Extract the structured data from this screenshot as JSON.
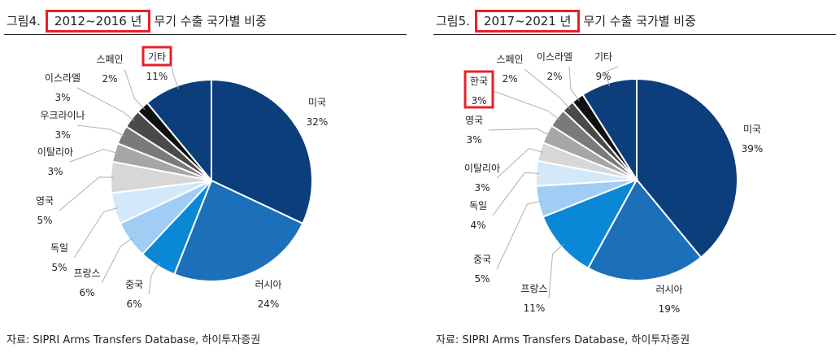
{
  "chart_data": [
    {
      "type": "pie",
      "title_prefix": "그림4.",
      "title_period": "2012~2016 년",
      "title_suffix": "무기 수출 국가별 비중",
      "source": "자료: SIPRI Arms Transfers Database, 하이투자증권",
      "unit": "%",
      "slices": [
        {
          "label": "미국",
          "value": 32,
          "color": "#0c3e7c"
        },
        {
          "label": "러시아",
          "value": 24,
          "color": "#1c6fb9"
        },
        {
          "label": "중국",
          "value": 6,
          "color": "#0a88d6"
        },
        {
          "label": "프랑스",
          "value": 6,
          "color": "#9fcdf3"
        },
        {
          "label": "독일",
          "value": 5,
          "color": "#d3e9fa"
        },
        {
          "label": "영국",
          "value": 5,
          "color": "#d7d7d7"
        },
        {
          "label": "이탈리아",
          "value": 3,
          "color": "#a6a6a6"
        },
        {
          "label": "우크라이나",
          "value": 3,
          "color": "#7a7a7a"
        },
        {
          "label": "이스라엘",
          "value": 3,
          "color": "#4a4a4a"
        },
        {
          "label": "스페인",
          "value": 2,
          "color": "#111111"
        },
        {
          "label": "기타",
          "value": 11,
          "color": "#0c3e7c",
          "highlight": true
        }
      ]
    },
    {
      "type": "pie",
      "title_prefix": "그림5.",
      "title_period": "2017~2021 년",
      "title_suffix": "무기 수출 국가별 비중",
      "source": "자료: SIPRI Arms Transfers Database, 하이투자증권",
      "unit": "%",
      "slices": [
        {
          "label": "미국",
          "value": 39,
          "color": "#0c3e7c"
        },
        {
          "label": "러시아",
          "value": 19,
          "color": "#1c6fb9"
        },
        {
          "label": "프랑스",
          "value": 11,
          "color": "#0a88d6"
        },
        {
          "label": "중국",
          "value": 5,
          "color": "#9fcdf3"
        },
        {
          "label": "독일",
          "value": 4,
          "color": "#d3e9fa"
        },
        {
          "label": "이탈리아",
          "value": 3,
          "color": "#d7d7d7"
        },
        {
          "label": "영국",
          "value": 3,
          "color": "#a6a6a6"
        },
        {
          "label": "한국",
          "value": 3,
          "color": "#7a7a7a",
          "highlight": true
        },
        {
          "label": "스페인",
          "value": 2,
          "color": "#4a4a4a"
        },
        {
          "label": "이스라엘",
          "value": 2,
          "color": "#111111"
        },
        {
          "label": "기타",
          "value": 9,
          "color": "#0c3e7c"
        }
      ]
    }
  ]
}
